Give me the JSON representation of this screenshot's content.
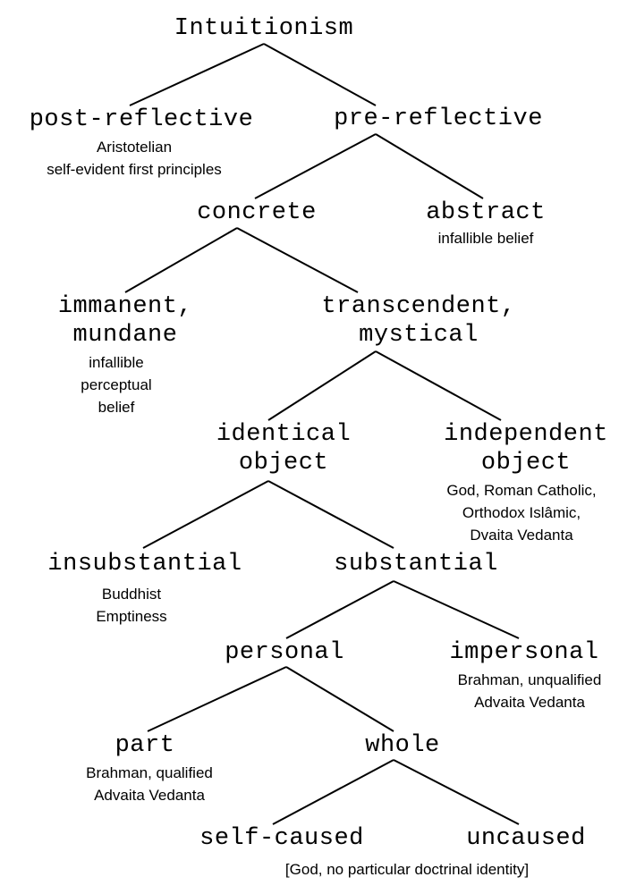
{
  "tree": {
    "root": {
      "title": "Intuitionism"
    },
    "post_reflective": {
      "title": "post-reflective",
      "note": [
        "Aristotelian",
        "self-evident first principles"
      ]
    },
    "pre_reflective": {
      "title": "pre-reflective"
    },
    "concrete": {
      "title": "concrete"
    },
    "abstract": {
      "title": "abstract",
      "note": [
        "infallible belief"
      ]
    },
    "immanent": {
      "title": [
        "immanent,",
        "mundane"
      ],
      "note": [
        "infallible",
        "perceptual",
        "belief"
      ]
    },
    "transcendent": {
      "title": [
        "transcendent,",
        "mystical"
      ]
    },
    "identical": {
      "title": [
        "identical",
        "object"
      ]
    },
    "independent": {
      "title": [
        "independent",
        "object"
      ],
      "note": [
        "God, Roman Catholic,",
        "Orthodox Islâmic,",
        "Dvaita Vedanta"
      ]
    },
    "insubstantial": {
      "title": "insubstantial",
      "note": [
        "Buddhist",
        "Emptiness"
      ]
    },
    "substantial": {
      "title": "substantial"
    },
    "personal": {
      "title": "personal"
    },
    "impersonal": {
      "title": "impersonal",
      "note": [
        "Brahman, unqualified",
        "Advaita Vedanta"
      ]
    },
    "part": {
      "title": "part",
      "note": [
        "Brahman, qualified",
        "Advaita Vedanta"
      ]
    },
    "whole": {
      "title": "whole"
    },
    "self_caused": {
      "title": "self-caused"
    },
    "uncaused": {
      "title": "uncaused"
    },
    "footer_note": "[God, no particular doctrinal identity]"
  }
}
